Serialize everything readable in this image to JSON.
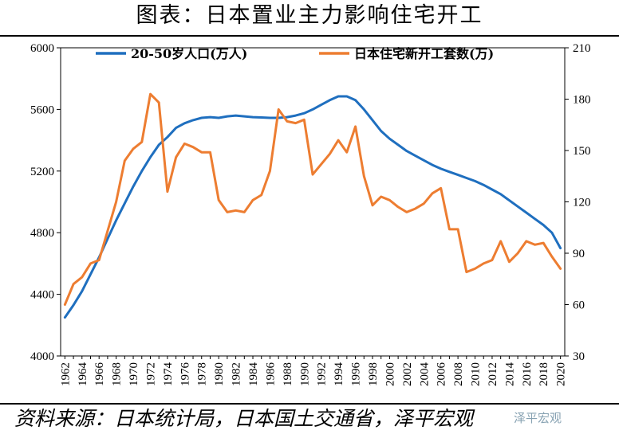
{
  "title": "图表：日本置业主力影响住宅开工",
  "source": "资料来源：日本统计局，日本国土交通省，泽平宏观",
  "watermark": "泽平宏观",
  "chart_data": {
    "type": "line",
    "title": "图表：日本置业主力影响住宅开工",
    "legend_position": "top",
    "grid": false,
    "x_ticks": [
      "1962",
      "1964",
      "1966",
      "1968",
      "1970",
      "1972",
      "1974",
      "1976",
      "1978",
      "1980",
      "1982",
      "1984",
      "1986",
      "1988",
      "1990",
      "1992",
      "1994",
      "1996",
      "1998",
      "2000",
      "2002",
      "2004",
      "2006",
      "2008",
      "2010",
      "2012",
      "2014",
      "2016",
      "2018",
      "2020"
    ],
    "y_left": {
      "min": 4000,
      "max": 6000,
      "ticks": [
        "4000",
        "4400",
        "4800",
        "5200",
        "5600",
        "6000"
      ]
    },
    "y_right": {
      "min": 30,
      "max": 210,
      "ticks": [
        "30",
        "60",
        "90",
        "120",
        "150",
        "180",
        "210"
      ]
    },
    "series": [
      {
        "name": "20-50岁人口(万人)",
        "axis": "left",
        "color": "#1f6fbf",
        "x": [
          1962,
          1963,
          1964,
          1965,
          1966,
          1967,
          1968,
          1969,
          1970,
          1971,
          1972,
          1973,
          1974,
          1975,
          1976,
          1977,
          1978,
          1979,
          1980,
          1981,
          1982,
          1983,
          1984,
          1985,
          1986,
          1987,
          1988,
          1989,
          1990,
          1991,
          1992,
          1993,
          1994,
          1995,
          1996,
          1997,
          1998,
          1999,
          2000,
          2001,
          2002,
          2003,
          2004,
          2005,
          2006,
          2007,
          2008,
          2009,
          2010,
          2011,
          2012,
          2013,
          2014,
          2015,
          2016,
          2017,
          2018,
          2019,
          2020
        ],
        "values": [
          4250,
          4330,
          4420,
          4530,
          4640,
          4760,
          4880,
          4990,
          5100,
          5200,
          5290,
          5370,
          5420,
          5480,
          5510,
          5530,
          5545,
          5550,
          5545,
          5555,
          5560,
          5555,
          5550,
          5548,
          5545,
          5545,
          5550,
          5560,
          5575,
          5600,
          5630,
          5660,
          5685,
          5685,
          5660,
          5600,
          5530,
          5460,
          5410,
          5370,
          5330,
          5300,
          5270,
          5240,
          5215,
          5195,
          5175,
          5155,
          5135,
          5110,
          5080,
          5050,
          5010,
          4970,
          4930,
          4890,
          4850,
          4800,
          4700
        ]
      },
      {
        "name": "日本住宅新开工套数(万)",
        "axis": "right",
        "color": "#ed7d31",
        "x": [
          1962,
          1963,
          1964,
          1965,
          1966,
          1967,
          1968,
          1969,
          1970,
          1971,
          1972,
          1973,
          1974,
          1975,
          1976,
          1977,
          1978,
          1979,
          1980,
          1981,
          1982,
          1983,
          1984,
          1985,
          1986,
          1987,
          1988,
          1989,
          1990,
          1991,
          1992,
          1993,
          1994,
          1995,
          1996,
          1997,
          1998,
          1999,
          2000,
          2001,
          2002,
          2003,
          2004,
          2005,
          2006,
          2007,
          2008,
          2009,
          2010,
          2011,
          2012,
          2013,
          2014,
          2015,
          2016,
          2017,
          2018,
          2019,
          2020
        ],
        "values": [
          60,
          72,
          76,
          84,
          86,
          103,
          120,
          144,
          151,
          155,
          183,
          178,
          126,
          146,
          154,
          152,
          149,
          149,
          121,
          114,
          115,
          114,
          121,
          124,
          138,
          174,
          167,
          166,
          168,
          136,
          142,
          148,
          156,
          149,
          164,
          135,
          118,
          123,
          121,
          117,
          114,
          116,
          119,
          125,
          128,
          104,
          104,
          79,
          81,
          84,
          86,
          97,
          85,
          90,
          97,
          95,
          96,
          88,
          81
        ]
      }
    ]
  }
}
